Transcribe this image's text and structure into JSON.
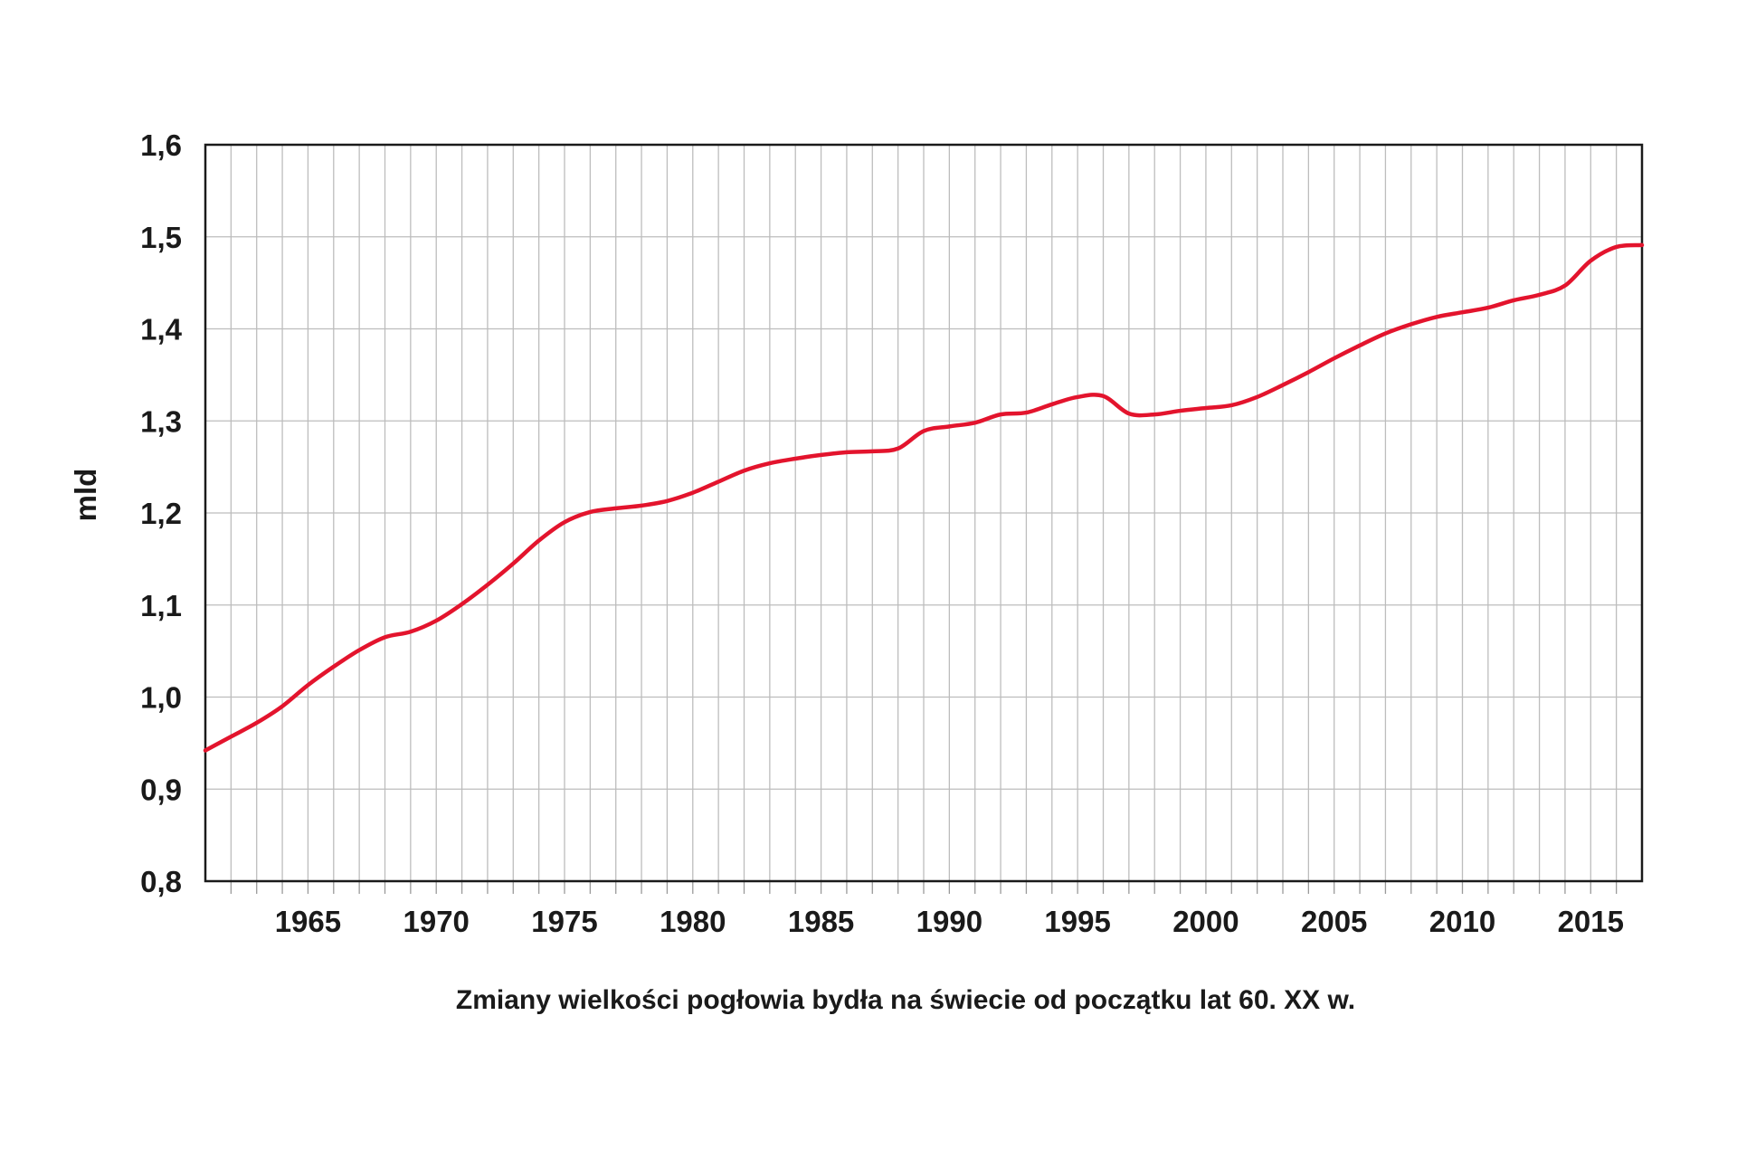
{
  "chart_data": {
    "type": "line",
    "title": "Zmiany wielkości pogłowia bydła na świecie od początku lat 60. XX w.",
    "xlabel": "",
    "ylabel": "mld",
    "xlim": [
      1961,
      2017
    ],
    "ylim": [
      0.8,
      1.6
    ],
    "x_ticks": [
      1965,
      1970,
      1975,
      1980,
      1985,
      1990,
      1995,
      2000,
      2005,
      2010,
      2015
    ],
    "x_tick_labels": [
      "1965",
      "1970",
      "1975",
      "1980",
      "1985",
      "1990",
      "1995",
      "2000",
      "2005",
      "2010",
      "2015"
    ],
    "y_ticks": [
      0.8,
      0.9,
      1.0,
      1.1,
      1.2,
      1.3,
      1.4,
      1.5,
      1.6
    ],
    "y_tick_labels": [
      "0,8",
      "0,9",
      "1,0",
      "1,1",
      "1,2",
      "1,3",
      "1,4",
      "1,5",
      "1,6"
    ],
    "grid": true,
    "grid_step_x": 1,
    "line_color": "#e3142d",
    "series": [
      {
        "x": [
          1961,
          1962,
          1963,
          1964,
          1965,
          1966,
          1967,
          1968,
          1969,
          1970,
          1971,
          1972,
          1973,
          1974,
          1975,
          1976,
          1977,
          1978,
          1979,
          1980,
          1981,
          1982,
          1983,
          1984,
          1985,
          1986,
          1987,
          1988,
          1989,
          1990,
          1991,
          1992,
          1993,
          1994,
          1995,
          1996,
          1997,
          1998,
          1999,
          2000,
          2001,
          2002,
          2003,
          2004,
          2005,
          2006,
          2007,
          2008,
          2009,
          2010,
          2011,
          2012,
          2013,
          2014,
          2015,
          2016,
          2017
        ],
        "values": [
          0.942,
          0.957,
          0.972,
          0.99,
          1.013,
          1.033,
          1.051,
          1.065,
          1.071,
          1.083,
          1.101,
          1.122,
          1.145,
          1.17,
          1.19,
          1.201,
          1.205,
          1.208,
          1.213,
          1.222,
          1.234,
          1.246,
          1.254,
          1.259,
          1.263,
          1.266,
          1.267,
          1.27,
          1.289,
          1.294,
          1.298,
          1.307,
          1.309,
          1.318,
          1.326,
          1.327,
          1.308,
          1.307,
          1.311,
          1.314,
          1.317,
          1.326,
          1.339,
          1.353,
          1.368,
          1.382,
          1.395,
          1.405,
          1.413,
          1.418,
          1.423,
          1.431,
          1.437,
          1.447,
          1.474,
          1.489,
          1.491
        ]
      }
    ]
  }
}
